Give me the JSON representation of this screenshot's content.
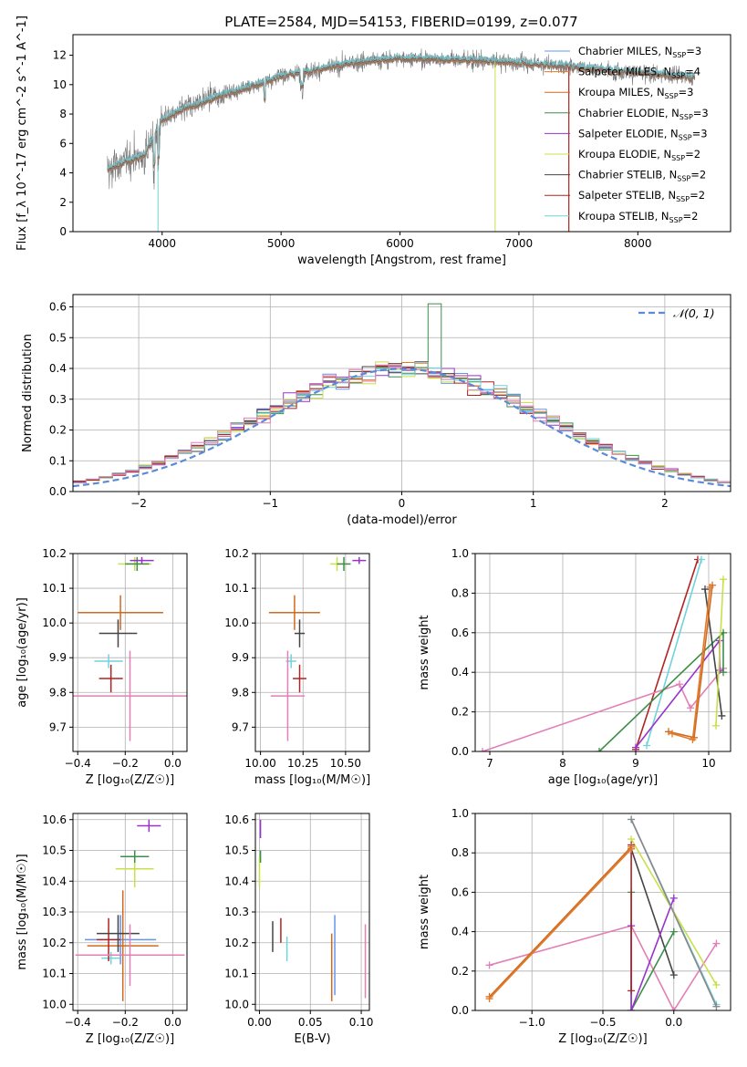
{
  "figure": {
    "title": "PLATE=2584, MJD=54153, FIBERID=0199, z=0.077"
  },
  "colors": {
    "blue": "#6495ed",
    "orange": "#e07b2a",
    "darkorange": "#d2691e",
    "green": "#3e8e4a",
    "purple": "#9932cc",
    "yellowgreen": "#c8e04a",
    "darkgray": "#444444",
    "red": "#b22222",
    "cyan": "#6fd3dc",
    "pink": "#e37fb4",
    "gray": "#888888"
  },
  "chart_data": [
    {
      "id": "spectrum",
      "type": "line",
      "xlabel": "wavelength [Angstrom, rest frame]",
      "ylabel": "Flux [f_λ 10^-17 erg cm^-2 s^-1 A^-1]",
      "xlim": [
        3250,
        8780
      ],
      "ylim": [
        0,
        13.4
      ],
      "xticks": [
        4000,
        5000,
        6000,
        7000,
        8000
      ],
      "yticks": [
        0,
        2,
        4,
        6,
        8,
        10,
        12
      ],
      "grid": false,
      "legend_position": "right",
      "legend": [
        {
          "label": "Chabrier MILES, N",
          "sub": "SSP",
          "suffix": "=3",
          "color": "#6495ed"
        },
        {
          "label": "Salpeter MILES, N",
          "sub": "SSP",
          "suffix": "=4",
          "color": "#e07b2a"
        },
        {
          "label": "Kroupa MILES, N",
          "sub": "SSP",
          "suffix": "=3",
          "color": "#d2691e"
        },
        {
          "label": "Chabrier ELODIE, N",
          "sub": "SSP",
          "suffix": "=3",
          "color": "#3e8e4a"
        },
        {
          "label": "Salpeter ELODIE, N",
          "sub": "SSP",
          "suffix": "=3",
          "color": "#9932cc"
        },
        {
          "label": "Kroupa ELODIE, N",
          "sub": "SSP",
          "suffix": "=2",
          "color": "#c8e04a"
        },
        {
          "label": "Chabrier STELIB, N",
          "sub": "SSP",
          "suffix": "=2",
          "color": "#444444"
        },
        {
          "label": "Salpeter STELIB, N",
          "sub": "SSP",
          "suffix": "=2",
          "color": "#b22222"
        },
        {
          "label": "Kroupa STELIB, N",
          "sub": "SSP",
          "suffix": "=2",
          "color": "#6fd3dc"
        }
      ],
      "data_range": [
        3540,
        8480
      ],
      "continuum_knots": [
        [
          3540,
          4.2
        ],
        [
          3700,
          4.8
        ],
        [
          3850,
          5.2
        ],
        [
          4000,
          7.6
        ],
        [
          4200,
          8.4
        ],
        [
          4500,
          9.3
        ],
        [
          4800,
          10.0
        ],
        [
          5000,
          10.6
        ],
        [
          5300,
          11.0
        ],
        [
          5600,
          11.5
        ],
        [
          6000,
          11.8
        ],
        [
          6500,
          11.7
        ],
        [
          7000,
          11.5
        ],
        [
          7500,
          11.2
        ],
        [
          8000,
          10.8
        ],
        [
          8480,
          10.5
        ]
      ]
    },
    {
      "id": "residuals",
      "type": "line",
      "xlabel": "(data-model)/error",
      "ylabel": "Normed distribution",
      "xlim": [
        -2.5,
        2.5
      ],
      "ylim": [
        0,
        0.64
      ],
      "xticks": [
        -2,
        -1,
        0,
        1,
        2
      ],
      "yticks": [
        0.0,
        0.1,
        0.2,
        0.3,
        0.4,
        0.5,
        0.6
      ],
      "grid": true,
      "legend_position": "top-right",
      "legend": [
        {
          "label": "𝒩(0, 1)",
          "color": "#5b8bd8",
          "dashed": true
        }
      ],
      "normal_curve": {
        "mu": 0,
        "sigma": 1
      },
      "bin_width": 0.1,
      "highlight_peak": {
        "x": 0.25,
        "y": 0.61
      }
    },
    {
      "id": "age-vs-Z",
      "type": "scatter",
      "xlabel": "Z [log₁₀(Z/Z☉)]",
      "ylabel": "age  [log₁₀(age/yr)]",
      "xlim": [
        -0.42,
        0.06
      ],
      "ylim": [
        9.63,
        10.2
      ],
      "xticks": [
        -0.4,
        -0.2,
        0.0
      ],
      "yticks": [
        9.7,
        9.8,
        9.9,
        10.0,
        10.1,
        10.2
      ],
      "grid": true,
      "points": [
        {
          "x": -0.22,
          "xerr": 0.18,
          "y": 10.03,
          "yerr": 0.05,
          "color": "#d2691e"
        },
        {
          "x": -0.27,
          "xerr": 0.06,
          "y": 9.89,
          "yerr": 0.02,
          "color": "#6fd3dc"
        },
        {
          "x": -0.26,
          "xerr": 0.05,
          "y": 9.84,
          "yerr": 0.04,
          "color": "#b22222"
        },
        {
          "x": -0.23,
          "xerr": 0.08,
          "y": 9.97,
          "yerr": 0.04,
          "color": "#444444"
        },
        {
          "x": -0.16,
          "xerr": 0.07,
          "y": 10.17,
          "yerr": 0.02,
          "color": "#c8e04a"
        },
        {
          "x": -0.15,
          "xerr": 0.05,
          "y": 10.17,
          "yerr": 0.02,
          "color": "#3e8e4a"
        },
        {
          "x": -0.13,
          "xerr": 0.05,
          "y": 10.18,
          "yerr": 0.01,
          "color": "#9932cc"
        },
        {
          "x": -0.18,
          "xerr": 0.24,
          "y": 9.79,
          "yerr": 0.13,
          "color": "#e37fb4"
        }
      ]
    },
    {
      "id": "age-vs-mass",
      "type": "scatter",
      "xlabel": "mass [log₁₀(M/M☉)]",
      "ylabel": "",
      "xlim": [
        9.97,
        10.64
      ],
      "ylim": [
        9.63,
        10.2
      ],
      "xticks": [
        10.0,
        10.25,
        10.5
      ],
      "yticks": [
        9.7,
        9.8,
        9.9,
        10.0,
        10.1,
        10.2
      ],
      "grid": true,
      "points": [
        {
          "x": 10.2,
          "xerr": 0.15,
          "y": 10.03,
          "yerr": 0.05,
          "color": "#d2691e"
        },
        {
          "x": 10.18,
          "xerr": 0.03,
          "y": 9.89,
          "yerr": 0.02,
          "color": "#6fd3dc"
        },
        {
          "x": 10.23,
          "xerr": 0.04,
          "y": 9.84,
          "yerr": 0.04,
          "color": "#b22222"
        },
        {
          "x": 10.23,
          "xerr": 0.03,
          "y": 9.97,
          "yerr": 0.04,
          "color": "#444444"
        },
        {
          "x": 10.45,
          "xerr": 0.04,
          "y": 10.17,
          "yerr": 0.02,
          "color": "#c8e04a"
        },
        {
          "x": 10.49,
          "xerr": 0.04,
          "y": 10.17,
          "yerr": 0.02,
          "color": "#3e8e4a"
        },
        {
          "x": 10.58,
          "xerr": 0.04,
          "y": 10.18,
          "yerr": 0.01,
          "color": "#9932cc"
        },
        {
          "x": 10.16,
          "xerr": 0.1,
          "y": 9.79,
          "yerr": 0.13,
          "color": "#e37fb4"
        }
      ]
    },
    {
      "id": "mass-weight-vs-age",
      "type": "line",
      "xlabel": "age  [log₁₀(age/yr)]",
      "ylabel": "mass weight",
      "xlim": [
        6.8,
        10.3
      ],
      "ylim": [
        0,
        1
      ],
      "xticks": [
        7,
        8,
        9,
        10
      ],
      "yticks": [
        0.0,
        0.2,
        0.4,
        0.6,
        0.8,
        1.0
      ],
      "grid": true,
      "series": [
        {
          "color": "#b22222",
          "points": [
            [
              9.0,
              0.01
            ],
            [
              9.85,
              0.97
            ]
          ]
        },
        {
          "color": "#6fd3dc",
          "points": [
            [
              9.15,
              0.03
            ],
            [
              9.9,
              0.97
            ]
          ]
        },
        {
          "color": "#e37fb4",
          "points": [
            [
              6.9,
              0.0
            ],
            [
              9.6,
              0.34
            ],
            [
              9.75,
              0.22
            ],
            [
              10.2,
              0.42
            ]
          ]
        },
        {
          "color": "#3e8e4a",
          "points": [
            [
              8.5,
              0.0
            ],
            [
              10.2,
              0.6
            ],
            [
              10.2,
              0.4
            ]
          ]
        },
        {
          "color": "#9932cc",
          "points": [
            [
              9.0,
              0.02
            ],
            [
              10.15,
              0.56
            ],
            [
              10.15,
              0.41
            ]
          ]
        },
        {
          "color": "#444444",
          "points": [
            [
              9.95,
              0.82
            ],
            [
              10.18,
              0.18
            ]
          ]
        },
        {
          "color": "#c8e04a",
          "points": [
            [
              10.1,
              0.13
            ],
            [
              10.2,
              0.87
            ]
          ]
        },
        {
          "color": "#d2691e",
          "points": [
            [
              9.45,
              0.1
            ],
            [
              9.8,
              0.07
            ],
            [
              10.05,
              0.84
            ]
          ]
        },
        {
          "color": "#e07b2a",
          "points": [
            [
              9.5,
              0.09
            ],
            [
              9.78,
              0.06
            ],
            [
              10.02,
              0.83
            ]
          ]
        }
      ]
    },
    {
      "id": "mass-vs-Z",
      "type": "scatter",
      "xlabel": "Z [log₁₀(Z/Z☉)]",
      "ylabel": "mass [log₁₀(M/M☉)]",
      "xlim": [
        -0.42,
        0.06
      ],
      "ylim": [
        9.98,
        10.62
      ],
      "xticks": [
        -0.4,
        -0.2,
        0.0
      ],
      "yticks": [
        10.0,
        10.1,
        10.2,
        10.3,
        10.4,
        10.5,
        10.6
      ],
      "grid": true,
      "points": [
        {
          "x": -0.22,
          "xerr": 0.15,
          "y": 10.21,
          "yerr": 0.08,
          "color": "#6495ed"
        },
        {
          "x": -0.21,
          "xerr": 0.15,
          "y": 10.19,
          "yerr": 0.18,
          "color": "#d2691e"
        },
        {
          "x": -0.26,
          "xerr": 0.04,
          "y": 10.15,
          "yerr": 0.02,
          "color": "#6fd3dc"
        },
        {
          "x": -0.27,
          "xerr": 0.05,
          "y": 10.21,
          "yerr": 0.07,
          "color": "#b22222"
        },
        {
          "x": -0.23,
          "xerr": 0.09,
          "y": 10.23,
          "yerr": 0.06,
          "color": "#444444"
        },
        {
          "x": -0.16,
          "xerr": 0.08,
          "y": 10.44,
          "yerr": 0.06,
          "color": "#c8e04a"
        },
        {
          "x": -0.16,
          "xerr": 0.06,
          "y": 10.48,
          "yerr": 0.02,
          "color": "#3e8e4a"
        },
        {
          "x": -0.1,
          "xerr": 0.05,
          "y": 10.58,
          "yerr": 0.02,
          "color": "#9932cc"
        },
        {
          "x": -0.18,
          "xerr": 0.23,
          "y": 10.16,
          "yerr": 0.1,
          "color": "#e37fb4"
        }
      ]
    },
    {
      "id": "mass-vs-EBV",
      "type": "scatter",
      "xlabel": "E(B-V)",
      "ylabel": "",
      "xlim": [
        -0.004,
        0.108
      ],
      "ylim": [
        9.98,
        10.62
      ],
      "xticks": [
        0.0,
        0.05,
        0.1
      ],
      "yticks": [
        10.0,
        10.1,
        10.2,
        10.3,
        10.4,
        10.5,
        10.6
      ],
      "grid": true,
      "points": [
        {
          "x": 0.074,
          "xerr": 0,
          "y": 10.16,
          "yerr": 0.13,
          "color": "#6495ed"
        },
        {
          "x": 0.071,
          "xerr": 0,
          "y": 10.12,
          "yerr": 0.11,
          "color": "#d2691e"
        },
        {
          "x": 0.027,
          "xerr": 0,
          "y": 10.18,
          "yerr": 0.04,
          "color": "#6fd3dc"
        },
        {
          "x": 0.021,
          "xerr": 0,
          "y": 10.24,
          "yerr": 0.04,
          "color": "#b22222"
        },
        {
          "x": 0.013,
          "xerr": 0,
          "y": 10.22,
          "yerr": 0.05,
          "color": "#444444"
        },
        {
          "x": 0.0,
          "xerr": 0,
          "y": 10.43,
          "yerr": 0.05,
          "color": "#c8e04a"
        },
        {
          "x": 0.001,
          "xerr": 0,
          "y": 10.48,
          "yerr": 0.02,
          "color": "#3e8e4a"
        },
        {
          "x": 0.001,
          "xerr": 0,
          "y": 10.57,
          "yerr": 0.03,
          "color": "#9932cc"
        },
        {
          "x": 0.104,
          "xerr": 0,
          "y": 10.14,
          "yerr": 0.12,
          "color": "#e37fb4"
        }
      ]
    },
    {
      "id": "mass-weight-vs-Z",
      "type": "line",
      "xlabel": "Z [log₁₀(Z/Z☉)]",
      "ylabel": "mass weight",
      "xlim": [
        -1.4,
        0.4
      ],
      "ylim": [
        0,
        1
      ],
      "xticks": [
        -1.0,
        -0.5,
        0.0
      ],
      "yticks": [
        0.0,
        0.2,
        0.4,
        0.6,
        0.8,
        1.0
      ],
      "grid": true,
      "series": [
        {
          "color": "#e37fb4",
          "points": [
            [
              -1.3,
              0.23
            ],
            [
              -0.3,
              0.43
            ],
            [
              0.0,
              0.0
            ],
            [
              0.3,
              0.34
            ]
          ]
        },
        {
          "color": "#6fd3dc",
          "points": [
            [
              -0.3,
              0.97
            ],
            [
              0.3,
              0.03
            ]
          ]
        },
        {
          "color": "#c8e04a",
          "points": [
            [
              -0.3,
              0.87
            ],
            [
              0.3,
              0.13
            ]
          ]
        },
        {
          "color": "#444444",
          "points": [
            [
              -0.3,
              0.82
            ],
            [
              0.0,
              0.18
            ]
          ]
        },
        {
          "color": "#3e8e4a",
          "points": [
            [
              -0.3,
              0.6
            ],
            [
              -0.3,
              0.0
            ],
            [
              0.0,
              0.4
            ]
          ]
        },
        {
          "color": "#9932cc",
          "points": [
            [
              -0.3,
              0.43
            ],
            [
              -0.3,
              0.0
            ],
            [
              0.0,
              0.57
            ]
          ]
        },
        {
          "color": "#b22222",
          "points": [
            [
              -0.3,
              0.1
            ],
            [
              -0.3,
              0.84
            ]
          ]
        },
        {
          "color": "#888888",
          "points": [
            [
              -0.3,
              0.97
            ],
            [
              0.3,
              0.02
            ]
          ]
        },
        {
          "color": "#d2691e",
          "points": [
            [
              -1.3,
              0.07
            ],
            [
              -0.3,
              0.83
            ]
          ]
        },
        {
          "color": "#e07b2a",
          "points": [
            [
              -1.3,
              0.06
            ],
            [
              -0.3,
              0.82
            ]
          ]
        }
      ]
    }
  ]
}
